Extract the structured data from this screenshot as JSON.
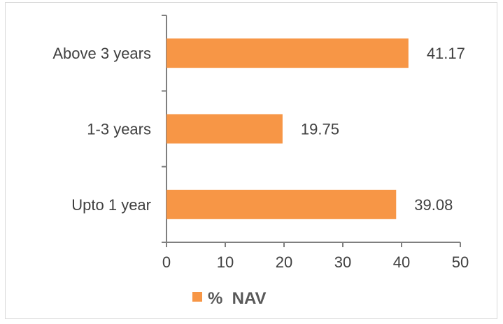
{
  "chart_data": {
    "type": "bar",
    "orientation": "horizontal",
    "categories": [
      "Above 3 years",
      "1-3 years",
      "Upto 1 year"
    ],
    "series": [
      {
        "name": "%  NAV",
        "values": [
          41.17,
          19.75,
          39.08
        ],
        "color": "#f79646"
      }
    ],
    "data_labels": [
      "41.17",
      "19.75",
      "39.08"
    ],
    "xlim": [
      0,
      50
    ],
    "x_ticks": [
      0,
      10,
      20,
      30,
      40,
      50
    ],
    "grid": false,
    "legend": "bottom"
  }
}
